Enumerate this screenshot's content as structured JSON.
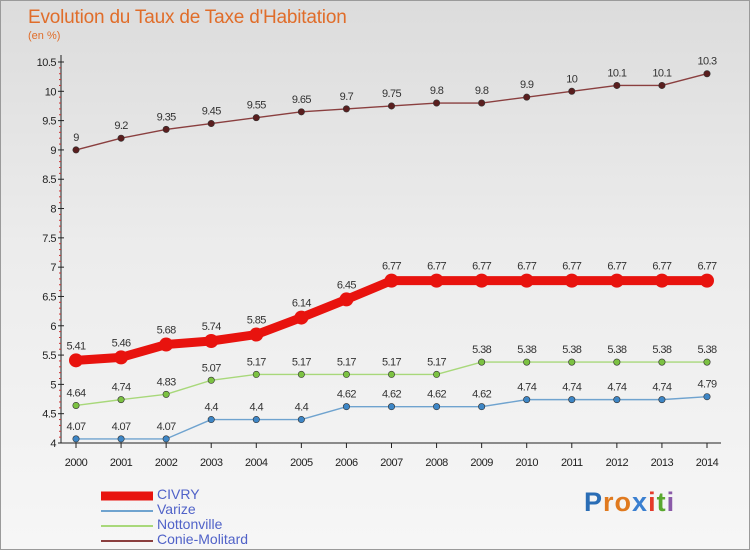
{
  "title": "Evolution du Taux de Taxe d'Habitation",
  "unit_label": "(en %)",
  "logo": {
    "letters": [
      "P",
      "r",
      "o",
      "x",
      "i",
      "t",
      "i"
    ],
    "colors": [
      "#2a6db5",
      "#e07a1f",
      "#e07a1f",
      "#3a7fd0",
      "#e53a2a",
      "#5aa82f",
      "#8a5aa8"
    ]
  },
  "chart_data": {
    "type": "line",
    "x": [
      2000,
      2001,
      2002,
      2003,
      2004,
      2005,
      2006,
      2007,
      2008,
      2009,
      2010,
      2011,
      2012,
      2013,
      2014
    ],
    "ylim": [
      4,
      10.5
    ],
    "yticks": [
      "4",
      "4.5",
      "5",
      "5.5",
      "6",
      "6.5",
      "7",
      "7.5",
      "8",
      "8.5",
      "9",
      "9.5",
      "10",
      "10.5"
    ],
    "xticks": [
      "2000",
      "2001",
      "2002",
      "2003",
      "2004",
      "2005",
      "2006",
      "2007",
      "2008",
      "2009",
      "2010",
      "2011",
      "2012",
      "2013",
      "2014"
    ],
    "grid": false,
    "legend_position": "bottom-left",
    "series": [
      {
        "name": "CIVRY",
        "color": "#e8130e",
        "emphasis": true,
        "values": [
          5.41,
          5.46,
          5.68,
          5.74,
          5.85,
          6.14,
          6.45,
          6.77,
          6.77,
          6.77,
          6.77,
          6.77,
          6.77,
          6.77,
          6.77
        ],
        "labels": [
          "5.41",
          "5.46",
          "5.68",
          "5.74",
          "5.85",
          "6.14",
          "6.45",
          "6.77",
          "6.77",
          "6.77",
          "6.77",
          "6.77",
          "6.77",
          "6.77",
          "6.77"
        ]
      },
      {
        "name": "Varize",
        "color": "#6fa3cf",
        "marker_color": "#3d86c6",
        "values": [
          4.07,
          4.07,
          4.07,
          4.4,
          4.4,
          4.4,
          4.62,
          4.62,
          4.62,
          4.62,
          4.74,
          4.74,
          4.74,
          4.74,
          4.79
        ],
        "labels": [
          "4.07",
          "4.07",
          "4.07",
          "4.4",
          "4.4",
          "4.4",
          "4.62",
          "4.62",
          "4.62",
          "4.62",
          "4.74",
          "4.74",
          "4.74",
          "4.74",
          "4.79"
        ]
      },
      {
        "name": "Nottonville",
        "color": "#a8d87a",
        "marker_color": "#7cc242",
        "values": [
          4.64,
          4.74,
          4.83,
          5.07,
          5.17,
          5.17,
          5.17,
          5.17,
          5.17,
          5.38,
          5.38,
          5.38,
          5.38,
          5.38,
          5.38
        ],
        "labels": [
          "4.64",
          "4.74",
          "4.83",
          "5.07",
          "5.17",
          "5.17",
          "5.17",
          "5.17",
          "5.17",
          "5.38",
          "5.38",
          "5.38",
          "5.38",
          "5.38",
          "5.38"
        ]
      },
      {
        "name": "Conie-Molitard",
        "color": "#8a3f3f",
        "marker_color": "#5a1e1e",
        "values": [
          9,
          9.2,
          9.35,
          9.45,
          9.55,
          9.65,
          9.7,
          9.75,
          9.8,
          9.8,
          9.9,
          10,
          10.1,
          10.1,
          10.3
        ],
        "labels": [
          "9",
          "9.2",
          "9.35",
          "9.45",
          "9.55",
          "9.65",
          "9.7",
          "9.75",
          "9.8",
          "9.8",
          "9.9",
          "10",
          "10.1",
          "10.1",
          "10.3"
        ]
      }
    ]
  }
}
